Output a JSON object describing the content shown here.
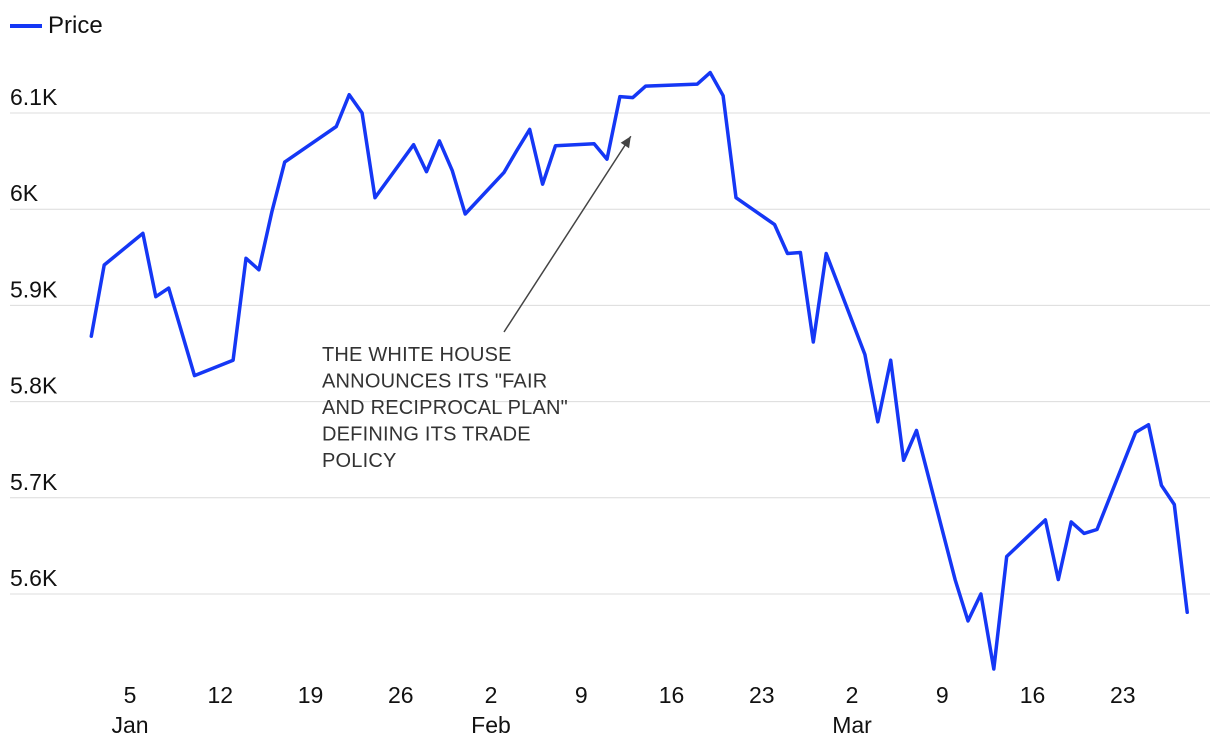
{
  "legend": {
    "label": "Price"
  },
  "chart_data": {
    "type": "line",
    "series": [
      {
        "name": "Price",
        "color": "#1537f5"
      }
    ],
    "x": [
      "2025-01-02",
      "2025-01-03",
      "2025-01-06",
      "2025-01-07",
      "2025-01-08",
      "2025-01-10",
      "2025-01-13",
      "2025-01-14",
      "2025-01-15",
      "2025-01-16",
      "2025-01-17",
      "2025-01-21",
      "2025-01-22",
      "2025-01-23",
      "2025-01-24",
      "2025-01-27",
      "2025-01-28",
      "2025-01-29",
      "2025-01-30",
      "2025-01-31",
      "2025-02-03",
      "2025-02-04",
      "2025-02-05",
      "2025-02-06",
      "2025-02-07",
      "2025-02-10",
      "2025-02-11",
      "2025-02-12",
      "2025-02-13",
      "2025-02-14",
      "2025-02-18",
      "2025-02-19",
      "2025-02-20",
      "2025-02-21",
      "2025-02-24",
      "2025-02-25",
      "2025-02-26",
      "2025-02-27",
      "2025-02-28",
      "2025-03-03",
      "2025-03-04",
      "2025-03-05",
      "2025-03-06",
      "2025-03-07",
      "2025-03-10",
      "2025-03-11",
      "2025-03-12",
      "2025-03-13",
      "2025-03-14",
      "2025-03-17",
      "2025-03-18",
      "2025-03-19",
      "2025-03-20",
      "2025-03-21",
      "2025-03-24",
      "2025-03-25",
      "2025-03-26",
      "2025-03-27",
      "2025-03-28"
    ],
    "y": [
      5868,
      5942,
      5975,
      5909,
      5918,
      5827,
      5843,
      5949,
      5937,
      5997,
      6049,
      6086,
      6119,
      6100,
      6012,
      6067,
      6039,
      6071,
      6040,
      5995,
      6038,
      6061,
      6083,
      6026,
      6066,
      6068,
      6052,
      6117,
      6116,
      6128,
      6130,
      6142,
      6118,
      6012,
      5984,
      5954,
      5955,
      5862,
      5954,
      5849,
      5779,
      5843,
      5739,
      5770,
      5615,
      5572,
      5600,
      5522,
      5639,
      5677,
      5615,
      5675,
      5663,
      5667,
      5768,
      5776,
      5713,
      5693,
      5581
    ],
    "ylim": [
      5500,
      6170
    ],
    "y_ticks": [
      5600,
      5700,
      5800,
      5900,
      6000,
      6100
    ],
    "y_tick_labels": [
      "5.6K",
      "5.7K",
      "5.8K",
      "5.9K",
      "6K",
      "6.1K"
    ],
    "x_ticks": [
      {
        "date": "2025-01-05",
        "label": "5",
        "month": "Jan"
      },
      {
        "date": "2025-01-12",
        "label": "12",
        "month": ""
      },
      {
        "date": "2025-01-19",
        "label": "19",
        "month": ""
      },
      {
        "date": "2025-01-26",
        "label": "26",
        "month": ""
      },
      {
        "date": "2025-02-02",
        "label": "2",
        "month": "Feb"
      },
      {
        "date": "2025-02-09",
        "label": "9",
        "month": ""
      },
      {
        "date": "2025-02-16",
        "label": "16",
        "month": ""
      },
      {
        "date": "2025-02-23",
        "label": "23",
        "month": ""
      },
      {
        "date": "2025-03-02",
        "label": "2",
        "month": "Mar"
      },
      {
        "date": "2025-03-09",
        "label": "9",
        "month": ""
      },
      {
        "date": "2025-03-16",
        "label": "16",
        "month": ""
      },
      {
        "date": "2025-03-23",
        "label": "23",
        "month": ""
      }
    ],
    "grid": true,
    "legend_position": "top-left",
    "annotations": [
      {
        "lines": [
          "THE WHITE HOUSE",
          "ANNOUNCES ITS \"FAIR",
          "AND RECIPROCAL PLAN\"",
          "DEFINING ITS TRADE",
          "POLICY"
        ],
        "date": "2025-02-13",
        "value": 6080
      }
    ]
  }
}
